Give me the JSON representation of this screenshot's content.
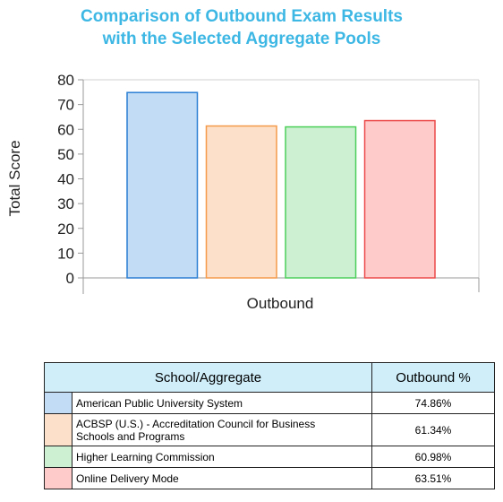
{
  "chart_data": {
    "type": "bar",
    "title_lines": [
      "Comparison of Outbound Exam Results",
      "with the Selected Aggregate Pools"
    ],
    "ylabel": "Total Score",
    "xlabel": "Outbound",
    "ylim": [
      0,
      80
    ],
    "yticks": [
      0,
      10,
      20,
      30,
      40,
      50,
      60,
      70,
      80
    ],
    "grid": false,
    "series": [
      {
        "name": "American Public University System",
        "value": 74.86,
        "fill": "#c2dcf5",
        "stroke": "#2a7fd4"
      },
      {
        "name": "ACBSP (U.S.) - Accreditation Council for Business Schools and Programs",
        "value": 61.34,
        "fill": "#fde0c9",
        "stroke": "#f59a4a"
      },
      {
        "name": "Higher Learning Commission",
        "value": 60.98,
        "fill": "#cdefd2",
        "stroke": "#4ccf5a"
      },
      {
        "name": "Online Delivery Mode",
        "value": 63.51,
        "fill": "#ffcaca",
        "stroke": "#ec4a4a"
      }
    ]
  },
  "table": {
    "header_name": "School/Aggregate",
    "header_value": "Outbound %",
    "rows": [
      {
        "name_line1": "American Public University System",
        "name_line2": "",
        "pct": "74.86%"
      },
      {
        "name_line1": "ACBSP (U.S.) - Accreditation Council for Business",
        "name_line2": "Schools and Programs",
        "pct": "61.34%"
      },
      {
        "name_line1": "Higher Learning Commission",
        "name_line2": "",
        "pct": "60.98%"
      },
      {
        "name_line1": "Online Delivery Mode",
        "name_line2": "",
        "pct": "63.51%"
      }
    ]
  }
}
